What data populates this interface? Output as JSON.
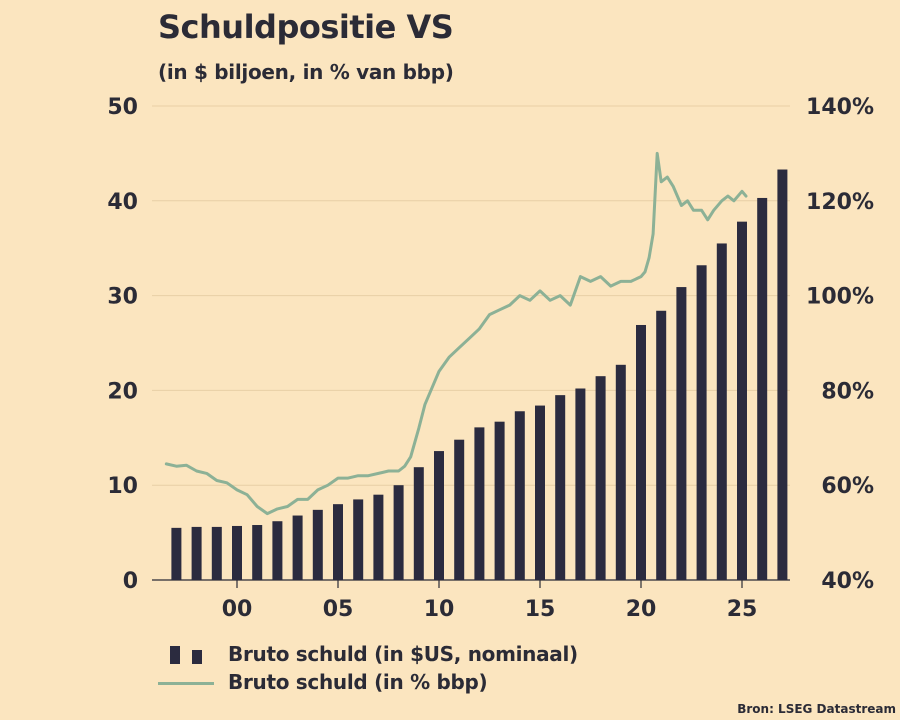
{
  "title": "Schuldpositie VS",
  "subtitle": "(in $ biljoen, in % van bbp)",
  "source": "Bron: LSEG Datastream",
  "chart_data": {
    "type": "bar",
    "title": "Schuldpositie VS",
    "subtitle": "(in $ biljoen, in % van bbp)",
    "x_ticks": [
      "00",
      "05",
      "10",
      "15",
      "20",
      "25"
    ],
    "y_left": {
      "ticks": [
        "0",
        "10",
        "20",
        "30",
        "40",
        "50"
      ],
      "range": [
        0,
        50
      ]
    },
    "y_right": {
      "ticks": [
        "40%",
        "60%",
        "80%",
        "100%",
        "120%",
        "140%"
      ],
      "range": [
        40,
        140
      ]
    },
    "grid": true,
    "series": [
      {
        "name": "Bruto schuld (in $US, nominaal)",
        "kind": "bar",
        "axis": "left",
        "color": "#2b2b3f",
        "x": [
          1997,
          1998,
          1999,
          2000,
          2001,
          2002,
          2003,
          2004,
          2005,
          2006,
          2007,
          2008,
          2009,
          2010,
          2011,
          2012,
          2013,
          2014,
          2015,
          2016,
          2017,
          2018,
          2019,
          2020,
          2021,
          2022,
          2023,
          2024,
          2025,
          2026,
          2027
        ],
        "values": [
          5.5,
          5.6,
          5.6,
          5.7,
          5.8,
          6.2,
          6.8,
          7.4,
          8.0,
          8.5,
          9.0,
          10.0,
          11.9,
          13.6,
          14.8,
          16.1,
          16.7,
          17.8,
          18.4,
          19.5,
          20.2,
          21.5,
          22.7,
          26.9,
          28.4,
          30.9,
          33.2,
          35.5,
          37.8,
          40.3,
          43.3
        ]
      },
      {
        "name": "Bruto schuld (in % bbp)",
        "kind": "line",
        "axis": "right",
        "color": "#8cb196",
        "x": [
          1996.5,
          1997,
          1997.5,
          1998,
          1998.5,
          1999,
          1999.5,
          2000,
          2000.5,
          2001,
          2001.5,
          2002,
          2002.5,
          2003,
          2003.5,
          2004,
          2004.5,
          2005,
          2005.5,
          2006,
          2006.5,
          2007,
          2007.5,
          2008,
          2008.3,
          2008.6,
          2009,
          2009.3,
          2009.6,
          2010,
          2010.5,
          2011,
          2011.5,
          2012,
          2012.5,
          2013,
          2013.5,
          2014,
          2014.5,
          2015,
          2015.5,
          2016,
          2016.5,
          2017,
          2017.5,
          2018,
          2018.5,
          2019,
          2019.5,
          2020,
          2020.2,
          2020.4,
          2020.6,
          2020.8,
          2021,
          2021.3,
          2021.6,
          2022,
          2022.3,
          2022.6,
          2023,
          2023.3,
          2023.6,
          2024,
          2024.3,
          2024.6,
          2025,
          2025.2
        ],
        "values": [
          64.5,
          64,
          64.2,
          63,
          62.5,
          61,
          60.5,
          59,
          58,
          55.5,
          54,
          55,
          55.5,
          57,
          57,
          59,
          60,
          61.5,
          61.5,
          62,
          62,
          62.5,
          63,
          63,
          64,
          66,
          72,
          77,
          80,
          84,
          87,
          89,
          91,
          93,
          96,
          97,
          98,
          100,
          99,
          101,
          99,
          100,
          98,
          104,
          103,
          104,
          102,
          103,
          103,
          104,
          105,
          108,
          113,
          130,
          124,
          125,
          123,
          119,
          120,
          118,
          118,
          116,
          118,
          120,
          121,
          120,
          122,
          121
        ]
      }
    ]
  },
  "legend": {
    "bar_label": "Bruto schuld (in $US, nominaal)",
    "line_label": "Bruto schuld (in % bbp)"
  }
}
